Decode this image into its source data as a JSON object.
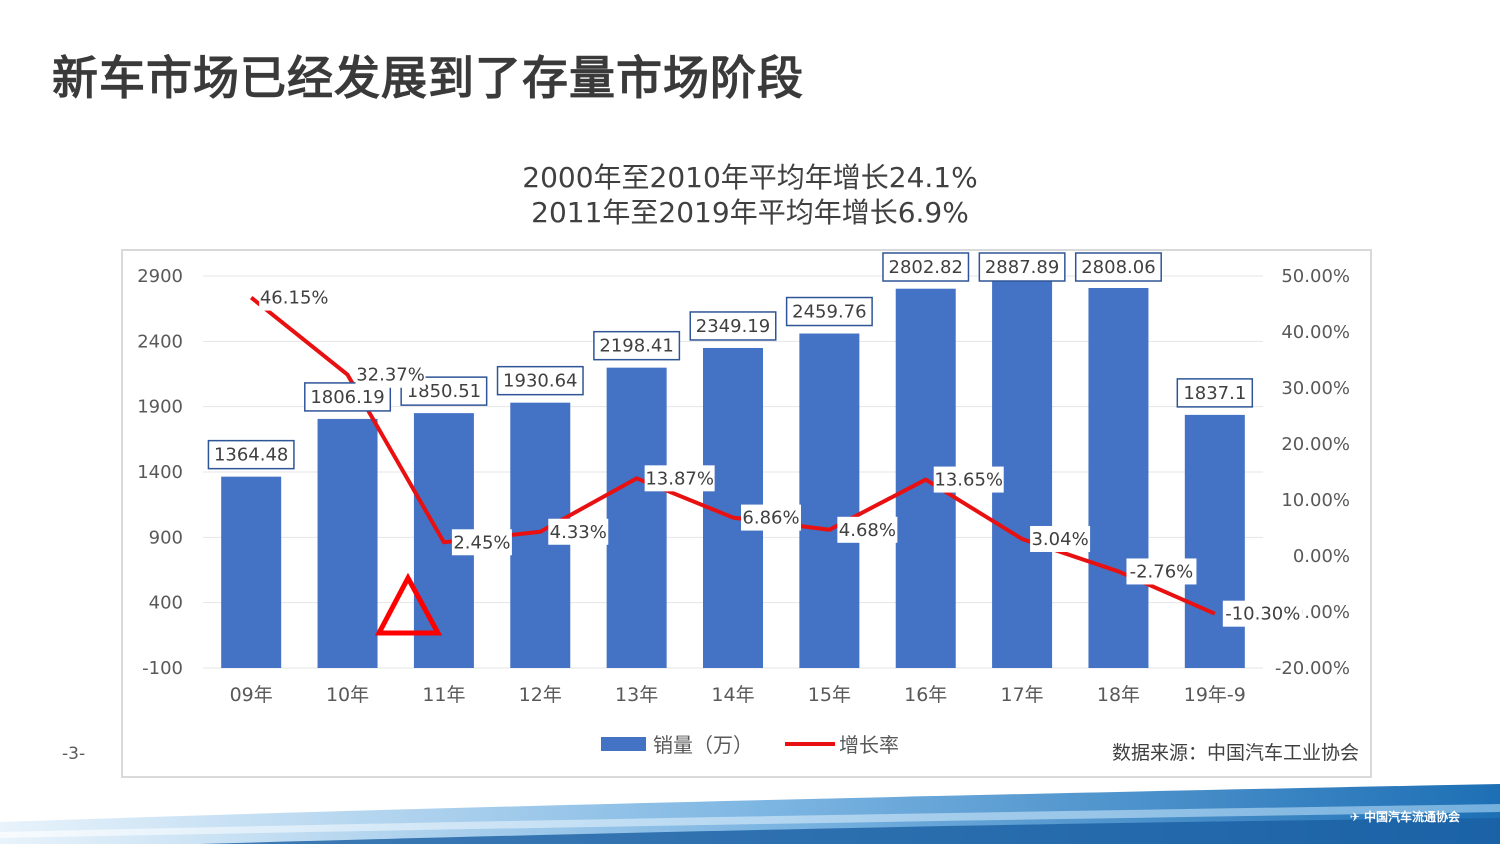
{
  "slide": {
    "title": "新车市场已经发展到了存量市场阶段",
    "subtitle_lines": [
      "2000年至2010年平均年增长24.1%",
      "2011年至2019年平均年增长6.9%"
    ],
    "page_number": "-3-",
    "source": "数据来源：中国汽车工业协会",
    "logo_text": "中国汽车流通协会"
  },
  "chart_data": {
    "type": "bar",
    "categories": [
      "09年",
      "10年",
      "11年",
      "12年",
      "13年",
      "14年",
      "15年",
      "16年",
      "17年",
      "18年",
      "19年-9"
    ],
    "series": [
      {
        "name": "销量（万）",
        "type": "bar",
        "axis": "left",
        "color": "#4472c4",
        "values": [
          1364.48,
          1806.19,
          1850.51,
          1930.64,
          2198.41,
          2349.19,
          2459.76,
          2802.82,
          2887.89,
          2808.06,
          1837.1
        ],
        "labels": [
          "1364.48",
          "1806.19",
          "1850.51",
          "1930.64",
          "2198.41",
          "2349.19",
          "2459.76",
          "2802.82",
          "2887.89",
          "2808.06",
          "1837.1"
        ]
      },
      {
        "name": "增长率",
        "type": "line",
        "axis": "right",
        "color": "#e81010",
        "values": [
          46.15,
          32.37,
          2.45,
          4.33,
          13.87,
          6.86,
          4.68,
          13.65,
          3.04,
          -2.76,
          -10.3
        ],
        "labels": [
          "46.15%",
          "32.37%",
          "2.45%",
          "4.33%",
          "13.87%",
          "6.86%",
          "4.68%",
          "13.65%",
          "3.04%",
          "-2.76%",
          "-10.30%"
        ]
      }
    ],
    "y_left": {
      "min": -100,
      "max": 2900,
      "ticks": [
        2900,
        2400,
        1900,
        1400,
        900,
        400,
        -100
      ]
    },
    "y_right": {
      "min": -20,
      "max": 50,
      "ticks": [
        "50.00%",
        "40.00%",
        "30.00%",
        "20.00%",
        "10.00%",
        "0.00%",
        "-10.00%",
        "-20.00%"
      ]
    },
    "legend_position": "bottom",
    "annotation": "red-triangle-outline"
  }
}
